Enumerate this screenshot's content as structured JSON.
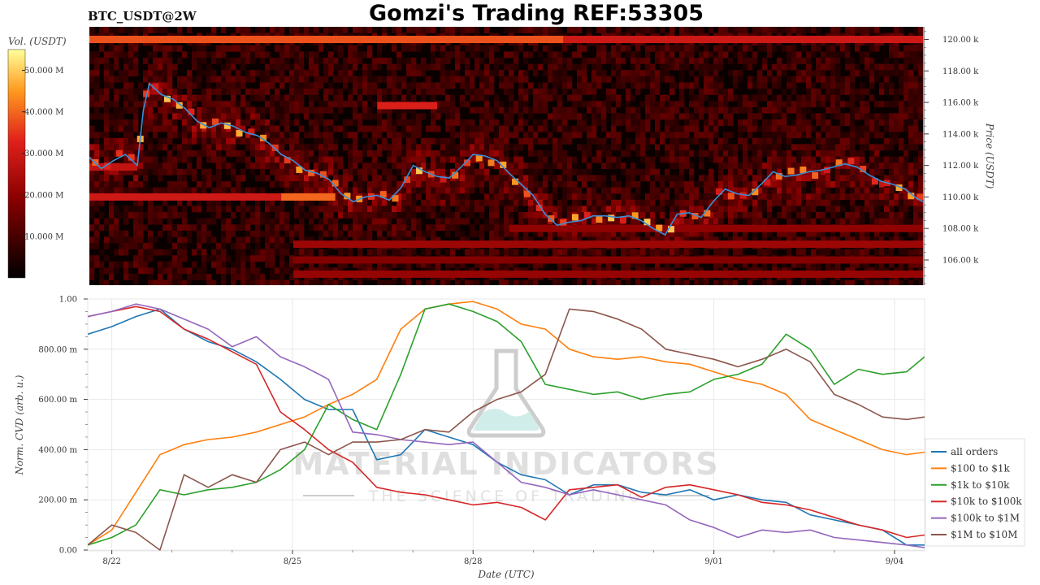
{
  "header": {
    "title": "Gomzi's Trading REF:53305",
    "pair": "BTC_USDT@2W"
  },
  "watermark": {
    "brand": "MATERIAL INDICATORS",
    "tagline": "THE SCIENCE OF TRADING"
  },
  "chart_data": [
    {
      "type": "heatmap",
      "title": "",
      "colorbar": {
        "label": "Vol. (USDT)",
        "range": [
          0,
          55
        ],
        "ticks": [
          10,
          20,
          30,
          40,
          50
        ],
        "tick_labels": [
          "10.000 M",
          "20.000 M",
          "30.000 M",
          "40.000 M",
          "50.000 M"
        ]
      },
      "ylabel": "Price (USDT)",
      "ylim": [
        104400,
        120800
      ],
      "y_ticks": [
        106000,
        108000,
        110000,
        112000,
        114000,
        116000,
        118000,
        120000
      ],
      "y_tick_labels": [
        "106.00 k",
        "108.00 k",
        "110.00 k",
        "112.00 k",
        "114.00 k",
        "116.00 k",
        "118.00 k",
        "120.00 k"
      ],
      "xlim": [
        21.4,
        35.3
      ],
      "volume_bands": [
        {
          "price": 120000,
          "from": 21.4,
          "to": 35.3,
          "vol": 30
        },
        {
          "price": 120000,
          "from": 21.4,
          "to": 29.3,
          "vol": 38
        },
        {
          "price": 115800,
          "from": 26.2,
          "to": 27.2,
          "vol": 32
        },
        {
          "price": 111900,
          "from": 21.4,
          "to": 22.2,
          "vol": 28
        },
        {
          "price": 110000,
          "from": 21.4,
          "to": 25.5,
          "vol": 30
        },
        {
          "price": 110000,
          "from": 24.6,
          "to": 25.5,
          "vol": 40
        },
        {
          "price": 108000,
          "from": 28.4,
          "to": 35.3,
          "vol": 20
        },
        {
          "price": 107000,
          "from": 24.8,
          "to": 35.3,
          "vol": 22
        },
        {
          "price": 106000,
          "from": 24.8,
          "to": 35.3,
          "vol": 18
        },
        {
          "price": 105100,
          "from": 24.8,
          "to": 35.3,
          "vol": 21
        }
      ],
      "price_series": {
        "name": "",
        "x": [
          21.4,
          21.6,
          21.8,
          22.0,
          22.2,
          22.3,
          22.4,
          22.6,
          22.8,
          23.0,
          23.2,
          23.4,
          23.6,
          23.8,
          24.0,
          24.2,
          24.4,
          24.6,
          24.8,
          25.0,
          25.2,
          25.4,
          25.6,
          25.8,
          26.0,
          26.2,
          26.4,
          26.6,
          26.8,
          27.0,
          27.2,
          27.4,
          27.6,
          27.8,
          28.0,
          28.2,
          28.4,
          28.6,
          28.8,
          29.0,
          29.2,
          29.4,
          29.6,
          29.8,
          30.0,
          30.2,
          30.4,
          30.6,
          30.8,
          31.0,
          31.2,
          31.4,
          31.6,
          31.8,
          32.0,
          32.2,
          32.4,
          32.6,
          32.8,
          33.0,
          33.2,
          33.4,
          33.6,
          33.8,
          34.0,
          34.2,
          34.4,
          34.6,
          34.8,
          35.0,
          35.2,
          35.3
        ],
        "y": [
          112500,
          111800,
          112300,
          112700,
          112000,
          115500,
          117200,
          116500,
          116200,
          115600,
          114800,
          114400,
          114700,
          114500,
          114100,
          113900,
          113400,
          112700,
          112300,
          111700,
          111500,
          111100,
          110200,
          109700,
          110000,
          110100,
          109800,
          110600,
          112000,
          111600,
          111300,
          111200,
          111900,
          112700,
          112600,
          112300,
          111500,
          110800,
          110100,
          108900,
          108200,
          108400,
          108500,
          108800,
          108800,
          108700,
          108800,
          108500,
          108000,
          107600,
          108900,
          109000,
          108700,
          109700,
          110500,
          110200,
          110100,
          110800,
          111600,
          111300,
          111400,
          111600,
          111700,
          111900,
          112100,
          111900,
          111400,
          111000,
          110800,
          110500,
          109900,
          109700
        ]
      }
    },
    {
      "type": "line",
      "title": "",
      "xlabel": "Date (UTC)",
      "ylabel": "Norm. CVD (arb. u.)",
      "ylim": [
        0,
        1
      ],
      "y_ticks": [
        0,
        0.2,
        0.4,
        0.6,
        0.8,
        1.0
      ],
      "y_tick_labels": [
        "0.00",
        "200.00 m",
        "400.00 m",
        "600.00 m",
        "800.00 m",
        "1.00"
      ],
      "xlim": [
        21.4,
        35.3
      ],
      "x_ticks": [
        21.8,
        24.8,
        27.8,
        31.8,
        34.8
      ],
      "x_tick_labels": [
        "8/22",
        "8/25",
        "8/28",
        "9/01",
        "9/04"
      ],
      "legend_position": "right",
      "x": [
        21.4,
        21.8,
        22.2,
        22.6,
        23.0,
        23.4,
        23.8,
        24.2,
        24.6,
        25.0,
        25.4,
        25.8,
        26.2,
        26.6,
        27.0,
        27.4,
        27.8,
        28.2,
        28.6,
        29.0,
        29.4,
        29.8,
        30.2,
        30.6,
        31.0,
        31.4,
        31.8,
        32.2,
        32.6,
        33.0,
        33.4,
        33.8,
        34.2,
        34.6,
        35.0,
        35.3
      ],
      "series": [
        {
          "name": "all orders",
          "color": "#1f77b4",
          "values": [
            0.86,
            0.89,
            0.93,
            0.96,
            0.88,
            0.83,
            0.8,
            0.75,
            0.68,
            0.6,
            0.56,
            0.56,
            0.36,
            0.38,
            0.48,
            0.45,
            0.42,
            0.35,
            0.3,
            0.28,
            0.22,
            0.26,
            0.26,
            0.23,
            0.22,
            0.24,
            0.2,
            0.22,
            0.2,
            0.19,
            0.14,
            0.12,
            0.1,
            0.08,
            0.02,
            0.02
          ]
        },
        {
          "name": "$100 to $1k",
          "color": "#ff7f0e",
          "values": [
            0.02,
            0.08,
            0.23,
            0.38,
            0.42,
            0.44,
            0.45,
            0.47,
            0.5,
            0.53,
            0.58,
            0.62,
            0.68,
            0.88,
            0.96,
            0.98,
            0.99,
            0.96,
            0.9,
            0.88,
            0.8,
            0.77,
            0.76,
            0.77,
            0.75,
            0.74,
            0.71,
            0.68,
            0.66,
            0.62,
            0.52,
            0.48,
            0.44,
            0.4,
            0.38,
            0.39
          ]
        },
        {
          "name": "$1k to $10k",
          "color": "#2ca02c",
          "values": [
            0.02,
            0.05,
            0.1,
            0.24,
            0.22,
            0.24,
            0.25,
            0.27,
            0.32,
            0.4,
            0.58,
            0.52,
            0.48,
            0.7,
            0.96,
            0.98,
            0.95,
            0.91,
            0.83,
            0.66,
            0.64,
            0.62,
            0.63,
            0.6,
            0.62,
            0.63,
            0.68,
            0.7,
            0.74,
            0.86,
            0.8,
            0.66,
            0.72,
            0.7,
            0.71,
            0.77
          ]
        },
        {
          "name": "$10k to $100k",
          "color": "#d62728",
          "values": [
            0.93,
            0.95,
            0.97,
            0.95,
            0.88,
            0.84,
            0.79,
            0.74,
            0.55,
            0.48,
            0.4,
            0.35,
            0.25,
            0.23,
            0.22,
            0.2,
            0.18,
            0.19,
            0.17,
            0.12,
            0.24,
            0.25,
            0.26,
            0.21,
            0.25,
            0.26,
            0.24,
            0.22,
            0.19,
            0.18,
            0.16,
            0.13,
            0.1,
            0.08,
            0.05,
            0.06
          ]
        },
        {
          "name": "$100k to $1M",
          "color": "#9467bd",
          "values": [
            0.93,
            0.95,
            0.98,
            0.96,
            0.92,
            0.88,
            0.81,
            0.85,
            0.77,
            0.73,
            0.68,
            0.47,
            0.46,
            0.44,
            0.43,
            0.42,
            0.43,
            0.35,
            0.27,
            0.25,
            0.22,
            0.24,
            0.22,
            0.2,
            0.18,
            0.12,
            0.09,
            0.05,
            0.08,
            0.07,
            0.08,
            0.05,
            0.04,
            0.03,
            0.02,
            0.01
          ]
        },
        {
          "name": "$1M to $10M",
          "color": "#8c564b",
          "values": [
            0.02,
            0.1,
            0.07,
            0.0,
            0.3,
            0.25,
            0.3,
            0.27,
            0.4,
            0.43,
            0.38,
            0.43,
            0.43,
            0.44,
            0.48,
            0.47,
            0.55,
            0.6,
            0.63,
            0.7,
            0.96,
            0.95,
            0.92,
            0.88,
            0.8,
            0.78,
            0.76,
            0.73,
            0.76,
            0.8,
            0.75,
            0.62,
            0.58,
            0.53,
            0.52,
            0.53
          ]
        }
      ]
    }
  ]
}
